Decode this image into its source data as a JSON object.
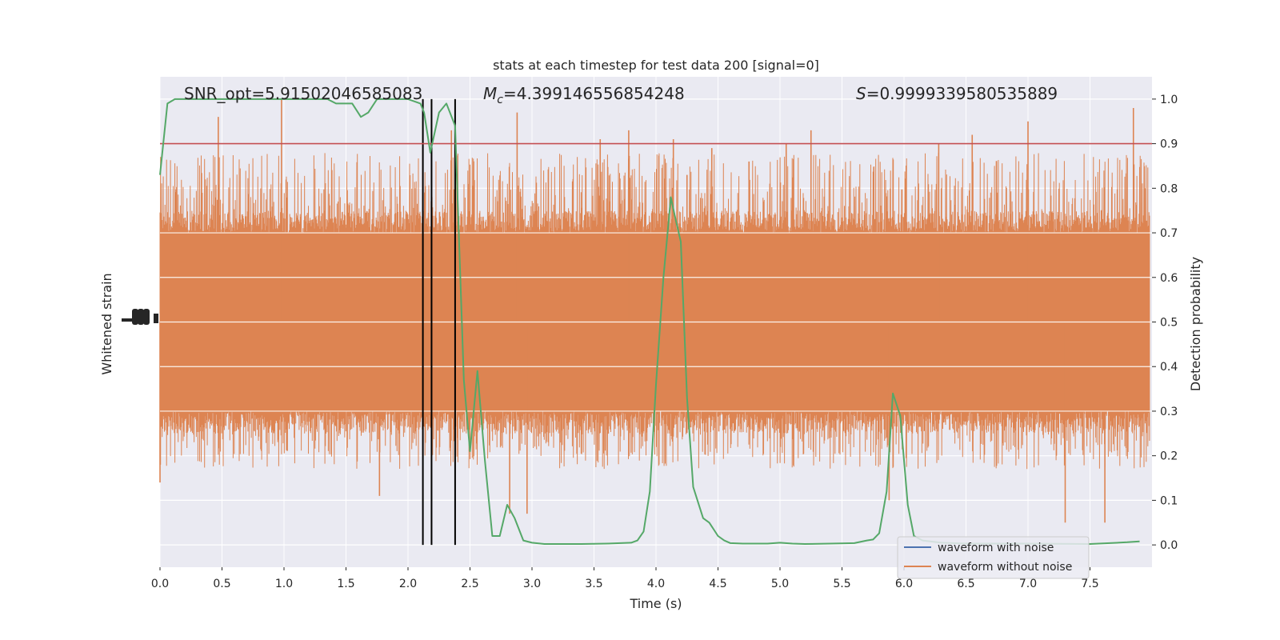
{
  "chart_data": {
    "type": "line",
    "title": "stats at each timestep for test data 200 [signal=0]",
    "xlabel": "Time (s)",
    "ylabel_left": "Whitened strain",
    "ylabel_right": "Detection probability",
    "xlim": [
      0.0,
      8.0
    ],
    "ylim_right": [
      -0.05,
      1.05
    ],
    "x_ticks": [
      0.0,
      0.5,
      1.0,
      1.5,
      2.0,
      2.5,
      3.0,
      3.5,
      4.0,
      4.5,
      5.0,
      5.5,
      6.0,
      6.5,
      7.0,
      7.5
    ],
    "x_tick_labels": [
      "0.0",
      "0.5",
      "1.0",
      "1.5",
      "2.0",
      "2.5",
      "3.0",
      "3.5",
      "4.0",
      "4.5",
      "5.0",
      "5.5",
      "6.0",
      "6.5",
      "7.0",
      "7.5"
    ],
    "y_right_ticks": [
      0.0,
      0.1,
      0.2,
      0.3,
      0.4,
      0.5,
      0.6,
      0.7,
      0.8,
      0.9,
      1.0
    ],
    "y_right_tick_labels": [
      "0.0",
      "0.1",
      "0.2",
      "0.3",
      "0.4",
      "0.5",
      "0.6",
      "0.7",
      "0.8",
      "0.9",
      "1.0"
    ],
    "grid": true,
    "background": "#eaeaf2",
    "annotations": [
      {
        "text": "SNR_opt=5.91502046585083"
      },
      {
        "text_prefix": "M",
        "subscript": "c",
        "text_suffix": "=4.399146556854248"
      },
      {
        "text_prefix": "S",
        "text_suffix": "=0.9999339580535889"
      }
    ],
    "threshold": {
      "value": 0.9,
      "color": "#c44e52"
    },
    "vertical_lines": {
      "x": [
        2.12,
        2.19,
        2.38
      ],
      "color": "#000000"
    },
    "legend": {
      "placement": "lower-right",
      "entries": [
        {
          "label": "waveform with noise",
          "color": "#4c72b0"
        },
        {
          "label": "waveform without noise",
          "color": "#dd8452"
        }
      ]
    },
    "series": [
      {
        "kind": "noise-band",
        "color": "#dd8452",
        "core_range": [
          0.3,
          0.7
        ],
        "typical_peak_range": [
          0.2,
          0.85
        ],
        "spike_x": [
          0.0,
          0.47,
          0.98,
          1.77,
          2.12,
          2.35,
          2.82,
          2.88,
          2.96,
          3.55,
          3.78,
          4.14,
          4.25,
          4.45,
          4.75,
          5.05,
          5.25,
          5.88,
          6.28,
          6.55,
          7.0,
          7.3,
          7.62,
          7.85
        ],
        "spike_y": [
          0.14,
          0.96,
          1.0,
          0.11,
          0.95,
          0.93,
          0.07,
          0.97,
          0.07,
          0.91,
          0.93,
          0.91,
          0.83,
          0.89,
          0.86,
          0.9,
          0.93,
          0.1,
          0.9,
          0.92,
          0.95,
          0.05,
          0.05,
          0.98
        ]
      },
      {
        "kind": "probability",
        "color": "#55a868",
        "x": [
          0.0,
          0.06,
          0.12,
          0.2,
          0.4,
          0.6,
          0.8,
          1.0,
          1.2,
          1.35,
          1.42,
          1.5,
          1.55,
          1.62,
          1.68,
          1.75,
          1.8,
          1.85,
          2.0,
          2.1,
          2.13,
          2.18,
          2.25,
          2.31,
          2.38,
          2.45,
          2.5,
          2.56,
          2.62,
          2.68,
          2.74,
          2.8,
          2.86,
          2.93,
          3.0,
          3.1,
          3.2,
          3.4,
          3.6,
          3.8,
          3.85,
          3.9,
          3.95,
          4.0,
          4.06,
          4.12,
          4.15,
          4.2,
          4.25,
          4.3,
          4.38,
          4.43,
          4.5,
          4.55,
          4.6,
          4.7,
          4.8,
          4.9,
          5.0,
          5.1,
          5.2,
          5.4,
          5.6,
          5.7,
          5.75,
          5.8,
          5.86,
          5.91,
          5.97,
          6.03,
          6.08,
          6.15,
          6.3,
          6.5,
          6.8,
          7.0,
          7.5,
          7.8,
          7.9
        ],
        "y": [
          0.83,
          0.99,
          1.0,
          1.0,
          1.0,
          1.0,
          1.0,
          1.0,
          1.0,
          1.0,
          0.99,
          0.99,
          0.99,
          0.96,
          0.97,
          1.0,
          1.0,
          1.0,
          1.0,
          0.99,
          0.97,
          0.88,
          0.97,
          0.99,
          0.94,
          0.37,
          0.21,
          0.39,
          0.19,
          0.02,
          0.02,
          0.09,
          0.06,
          0.01,
          0.005,
          0.002,
          0.002,
          0.002,
          0.003,
          0.005,
          0.01,
          0.03,
          0.12,
          0.36,
          0.6,
          0.78,
          0.74,
          0.68,
          0.33,
          0.13,
          0.06,
          0.05,
          0.02,
          0.01,
          0.004,
          0.003,
          0.003,
          0.003,
          0.005,
          0.003,
          0.002,
          0.003,
          0.004,
          0.01,
          0.012,
          0.026,
          0.12,
          0.34,
          0.29,
          0.09,
          0.02,
          0.01,
          0.005,
          0.003,
          0.003,
          0.003,
          0.002,
          0.006,
          0.008
        ]
      }
    ]
  }
}
